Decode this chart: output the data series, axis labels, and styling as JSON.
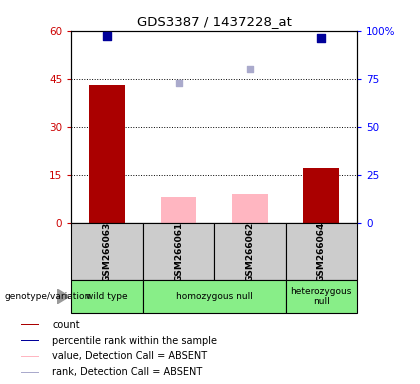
{
  "title": "GDS3387 / 1437228_at",
  "samples": [
    "GSM266063",
    "GSM266061",
    "GSM266062",
    "GSM266064"
  ],
  "count_values": [
    43,
    null,
    null,
    17
  ],
  "count_absent_values": [
    null,
    8,
    9,
    null
  ],
  "percentile_values": [
    97,
    null,
    null,
    96
  ],
  "percentile_absent_values": [
    null,
    73,
    80,
    null
  ],
  "ylim_left": [
    0,
    60
  ],
  "ylim_right": [
    0,
    100
  ],
  "yticks_left": [
    0,
    15,
    30,
    45,
    60
  ],
  "yticks_right": [
    0,
    25,
    50,
    75,
    100
  ],
  "ytick_labels_left": [
    "0",
    "15",
    "30",
    "45",
    "60"
  ],
  "ytick_labels_right": [
    "0",
    "25",
    "50",
    "75",
    "100%"
  ],
  "bar_width": 0.5,
  "bar_color_count": "#AA0000",
  "bar_color_absent": "#FFB6C1",
  "dot_color_percentile": "#000099",
  "dot_color_percentile_absent": "#AAAACC",
  "sample_bg_color": "#CCCCCC",
  "genotype_bg_color": "#88EE88",
  "groups": [
    [
      0,
      0,
      "wild type"
    ],
    [
      1,
      2,
      "homozygous null"
    ],
    [
      3,
      3,
      "heterozygous\nnull"
    ]
  ],
  "legend_data": [
    [
      "#AA0000",
      "count"
    ],
    [
      "#000099",
      "percentile rank within the sample"
    ],
    [
      "#FFB6C1",
      "value, Detection Call = ABSENT"
    ],
    [
      "#AAAACC",
      "rank, Detection Call = ABSENT"
    ]
  ]
}
